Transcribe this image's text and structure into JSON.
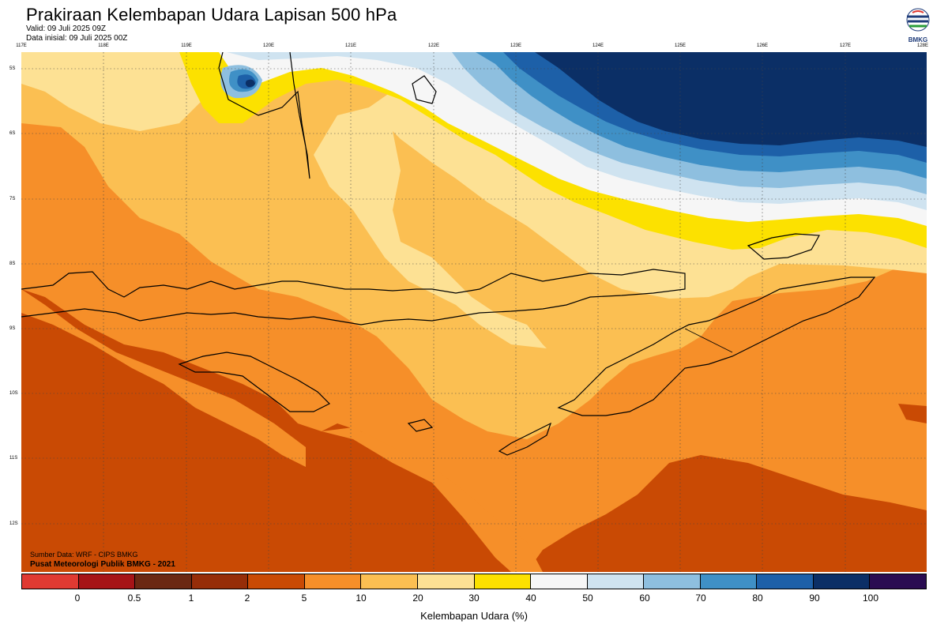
{
  "header": {
    "title": "Prakiraan Kelembapan Udara Lapisan 500 hPa",
    "valid": "Valid: 09 Juli 2025 09Z",
    "init": "Data inisial: 09 Juli 2025 00Z"
  },
  "logo": {
    "text": "BMKG"
  },
  "axes": {
    "lon_labels": [
      "117E",
      "118E",
      "119E",
      "120E",
      "121E",
      "122E",
      "123E",
      "124E",
      "125E",
      "126E",
      "127E",
      "128E"
    ],
    "lat_labels": [
      "5S",
      "6S",
      "7S",
      "8S",
      "9S",
      "10S",
      "11S",
      "12S"
    ]
  },
  "credits": {
    "source": "Sumber Data: WRF - CIPS BMKG",
    "org": "Pusat Meteorologi Publik BMKG - 2021"
  },
  "legend": {
    "title": "Kelembapan Udara (%)",
    "colors": [
      "#e03a32",
      "#a61417",
      "#6b2812",
      "#962d08",
      "#c94a04",
      "#f68f29",
      "#fbbf52",
      "#fde194",
      "#fce100",
      "#f6f6f6",
      "#cfe3f0",
      "#8ebfdf",
      "#3f90c6",
      "#1d60a8",
      "#0b2f66",
      "#2a0c52"
    ],
    "ticks": [
      "0",
      "0.5",
      "1",
      "2",
      "5",
      "10",
      "20",
      "30",
      "40",
      "50",
      "60",
      "70",
      "80",
      "90",
      "100"
    ]
  },
  "palette": {
    "land_border": "#000000",
    "lon_lat_grid": "#444444"
  }
}
